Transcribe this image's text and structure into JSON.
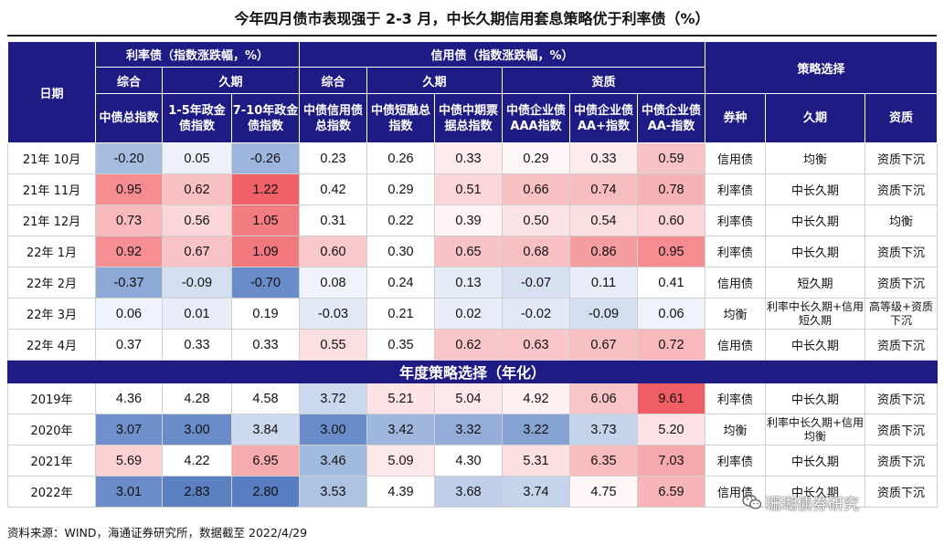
{
  "title": "今年四月债市表现强于 2-3 月，中长久期信用套息策略优于利率债（%）",
  "header": {
    "date_label": "日期",
    "rate_group": "利率债（指数涨跌幅，%）",
    "credit_group": "信用债（指数涨跌幅，%）",
    "strategy_group": "策略选择",
    "rate_sub1": "综合",
    "rate_sub2": "久期",
    "credit_sub1": "综合",
    "credit_sub2": "久期",
    "credit_sub3": "资质",
    "col1": "中债总指数",
    "col2": "1-5年政金债指数",
    "col3": "7-10年政金债指数",
    "col4": "中债信用债总指数",
    "col5": "中债短融总指数",
    "col6": "中债中期票据总指数",
    "col7": "中债企业债AAA指数",
    "col8": "中债企业债AA+指数",
    "col9": "中债企业债AA-指数",
    "s1": "券种",
    "s2": "久期",
    "s3": "资质"
  },
  "monthly_rows": [
    {
      "label": "21年 10月",
      "v1": "-0.20",
      "v2": "0.05",
      "v3": "-0.26",
      "v4": "0.23",
      "v5": "0.26",
      "v6": "0.33",
      "v7": "0.29",
      "v8": "0.33",
      "v9": "0.59",
      "s1": "信用债",
      "s2": "均衡",
      "s3": "资质下沉",
      "c1": "#a6bde0",
      "c2": "#eef1f8",
      "c3": "#9db6dd",
      "c4": "#ffffff",
      "c5": "#ffffff",
      "c6": "#fdecee",
      "c7": "#fff6f7",
      "c8": "#fdecee",
      "c9": "#f7c3c6"
    },
    {
      "label": "21年 11月",
      "v1": "0.95",
      "v2": "0.62",
      "v3": "1.22",
      "v4": "0.42",
      "v5": "0.29",
      "v6": "0.51",
      "v7": "0.66",
      "v8": "0.74",
      "v9": "0.78",
      "s1": "利率债",
      "s2": "中长久期",
      "s3": "资质下沉",
      "c1": "#f48c91",
      "c2": "#f8c0c3",
      "c3": "#f06067",
      "c4": "#ffffff",
      "c5": "#ffffff",
      "c6": "#fbd6d8",
      "c7": "#f8c0c3",
      "c8": "#f7bcbf",
      "c9": "#f6b3b6"
    },
    {
      "label": "21年 12月",
      "v1": "0.73",
      "v2": "0.56",
      "v3": "1.05",
      "v4": "0.31",
      "v5": "0.22",
      "v6": "0.39",
      "v7": "0.50",
      "v8": "0.54",
      "v9": "0.60",
      "s1": "利率债",
      "s2": "中长久期",
      "s3": "均衡",
      "c1": "#f7b9bc",
      "c2": "#fbd6d8",
      "c3": "#f27c82",
      "c4": "#ffffff",
      "c5": "#ffffff",
      "c6": "#fff4f5",
      "c7": "#fce3e5",
      "c8": "#fcdfe1",
      "c9": "#fbd5d7"
    },
    {
      "label": "22年 1月",
      "v1": "0.92",
      "v2": "0.67",
      "v3": "1.09",
      "v4": "0.60",
      "v5": "0.30",
      "v6": "0.65",
      "v7": "0.68",
      "v8": "0.86",
      "v9": "0.95",
      "s1": "利率债",
      "s2": "中长久期",
      "s3": "资质下沉",
      "c1": "#f58f94",
      "c2": "#f8c3c6",
      "c3": "#f27880",
      "c4": "#f9c8cb",
      "c5": "#ffffff",
      "c6": "#f8c3c6",
      "c7": "#f8c0c3",
      "c8": "#f59ea2",
      "c9": "#f48c91"
    },
    {
      "label": "22年 2月",
      "v1": "-0.37",
      "v2": "-0.09",
      "v3": "-0.70",
      "v4": "0.08",
      "v5": "0.24",
      "v6": "0.13",
      "v7": "-0.07",
      "v8": "0.11",
      "v9": "0.41",
      "s1": "信用债",
      "s2": "短久期",
      "s3": "资质下沉",
      "c1": "#8ea9d8",
      "c2": "#d3def0",
      "c3": "#6a8cc8",
      "c4": "#f0f3f9",
      "c5": "#ffffff",
      "c6": "#e6ecf6",
      "c7": "#d7e1f1",
      "c8": "#e8edf7",
      "c9": "#ffffff"
    },
    {
      "label": "22年 3月",
      "v1": "0.06",
      "v2": "0.01",
      "v3": "0.19",
      "v4": "-0.03",
      "v5": "0.21",
      "v6": "0.02",
      "v7": "-0.02",
      "v8": "-0.09",
      "v9": "0.06",
      "s1": "均衡",
      "s2": "利率中长久期+信用短久期",
      "s3": "高等级+资质下沉",
      "c1": "#eef2f9",
      "c2": "#e8edf7",
      "c3": "#ffffff",
      "c4": "#e3e9f5",
      "c5": "#ffffff",
      "c6": "#e8edf7",
      "c7": "#e4eaf5",
      "c8": "#d3def0",
      "c9": "#eef2f9"
    },
    {
      "label": "22年 4月",
      "v1": "0.37",
      "v2": "0.33",
      "v3": "0.33",
      "v4": "0.55",
      "v5": "0.35",
      "v6": "0.62",
      "v7": "0.63",
      "v8": "0.67",
      "v9": "0.72",
      "s1": "信用债",
      "s2": "中长久期",
      "s3": "资质下沉",
      "c1": "#ffffff",
      "c2": "#ffffff",
      "c3": "#ffffff",
      "c4": "#fcdfe1",
      "c5": "#ffffff",
      "c6": "#f9c6c9",
      "c7": "#f9c6c9",
      "c8": "#f8c0c3",
      "c9": "#f7b9bc"
    }
  ],
  "section_title": "年度策略选择（年化）",
  "annual_rows": [
    {
      "label": "2019年",
      "v1": "4.36",
      "v2": "4.28",
      "v3": "4.58",
      "v4": "3.72",
      "v5": "5.21",
      "v6": "5.04",
      "v7": "4.92",
      "v8": "6.06",
      "v9": "9.61",
      "s1": "利率债",
      "s2": "中长久期",
      "s3": "资质下沉",
      "c1": "#ffffff",
      "c2": "#ffffff",
      "c3": "#ffffff",
      "c4": "#ccd8ee",
      "c5": "#fde3e5",
      "c6": "#fde9eb",
      "c7": "#fff0f1",
      "c8": "#f9c4c7",
      "c9": "#ef5d65"
    },
    {
      "label": "2020年",
      "v1": "3.07",
      "v2": "3.00",
      "v3": "3.84",
      "v4": "3.00",
      "v5": "3.42",
      "v6": "3.32",
      "v7": "3.22",
      "v8": "3.73",
      "v9": "5.20",
      "s1": "均衡",
      "s2": "利率中长久期+信用均衡",
      "s3": "资质下沉",
      "c1": "#6f90ca",
      "c2": "#6a8cc8",
      "c3": "#cdd9ee",
      "c4": "#6a8cc8",
      "c5": "#9fb7dd",
      "c6": "#93acd8",
      "c7": "#87a3d4",
      "c8": "#c5d3eb",
      "c9": "#fde3e5"
    },
    {
      "label": "2021年",
      "v1": "5.69",
      "v2": "4.22",
      "v3": "6.95",
      "v4": "3.46",
      "v5": "5.09",
      "v6": "4.30",
      "v7": "5.31",
      "v8": "6.35",
      "v9": "7.03",
      "s1": "利率债",
      "s2": "中长久期",
      "s3": "资质下沉",
      "c1": "#fbd1d4",
      "c2": "#ffffff",
      "c3": "#f6abaf",
      "c4": "#a3badf",
      "c5": "#fce7e9",
      "c6": "#ffffff",
      "c7": "#fce0e2",
      "c8": "#f8bcbf",
      "c9": "#f6a8ac"
    },
    {
      "label": "2022年",
      "v1": "3.01",
      "v2": "2.83",
      "v3": "2.80",
      "v4": "3.53",
      "v5": "4.39",
      "v6": "3.68",
      "v7": "3.74",
      "v8": "4.75",
      "v9": "6.59",
      "s1": "信用债",
      "s2": "中长久期",
      "s3": "资质下沉",
      "c1": "#6a8cc8",
      "c2": "#5a80c2",
      "c3": "#587ec1",
      "c4": "#aec2e2",
      "c5": "#ffffff",
      "c6": "#c0cfe9",
      "c7": "#c6d4eb",
      "c8": "#fff6f7",
      "c9": "#f7b5b9"
    }
  ],
  "watermark": "珊瑚债券研究",
  "source": "资料来源：WIND，海通证券研究所，数据截至 2022/4/29"
}
